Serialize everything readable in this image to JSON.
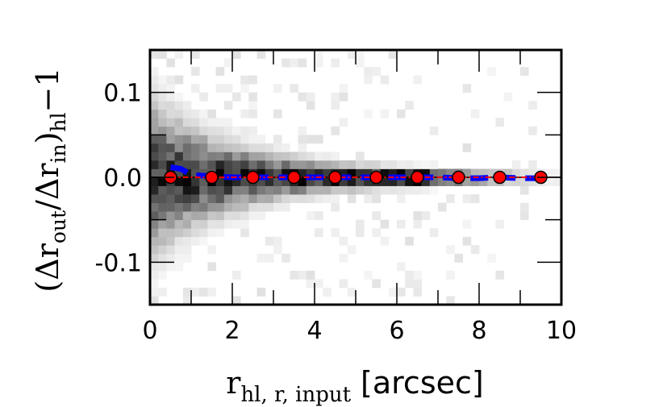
{
  "chart_data": {
    "type": "scatter",
    "xlabel": {
      "main": "r",
      "sub": "hl, r, input",
      "unit": "[arcsec]"
    },
    "ylabel": {
      "open": "(Δr",
      "sub1": "out",
      "mid": "/Δr",
      "sub2": "in",
      "close": ")",
      "sub3": "hl",
      "tail": "−1"
    },
    "xlim": [
      0,
      10
    ],
    "ylim": [
      -0.15,
      0.15
    ],
    "xticks": [
      0,
      2,
      4,
      6,
      8,
      10
    ],
    "xtick_labels": [
      "0",
      "2",
      "4",
      "6",
      "8",
      "10"
    ],
    "yticks": [
      -0.1,
      0.0,
      0.1
    ],
    "ytick_labels": [
      "-0.1",
      "0.0",
      "0.1"
    ],
    "grid": false,
    "reference_line": {
      "y": 0.0,
      "color": "#000000"
    },
    "series": [
      {
        "style": "red markers with dash-dot line",
        "color": "#ff0000",
        "x": [
          0.5,
          1.5,
          2.5,
          3.5,
          4.5,
          5.5,
          6.5,
          7.5,
          8.5,
          9.5
        ],
        "y": [
          0.0,
          0.0,
          0.0,
          0.0,
          0.0,
          0.0,
          0.0,
          0.0,
          0.0,
          0.0
        ]
      },
      {
        "style": "blue dashed line",
        "color": "#0000ff",
        "x": [
          0.5,
          0.75,
          1.0,
          1.5,
          2.0,
          2.5,
          3.0,
          3.5,
          4.0,
          4.5,
          5.0,
          5.5,
          6.0,
          6.5,
          7.0,
          7.5,
          8.0,
          8.5,
          9.0,
          9.5
        ],
        "y": [
          0.012,
          0.01,
          0.003,
          0.001,
          0.0,
          0.0,
          0.0,
          0.0,
          0.0,
          0.0,
          0.0,
          0.0,
          0.0,
          0.0,
          0.0,
          -0.001,
          -0.001,
          0.0,
          -0.001,
          -0.001
        ]
      }
    ],
    "density_background": {
      "type": "heatmap",
      "colormap": "gray_r",
      "x_bins": [
        0,
        10,
        50
      ],
      "y_bins": [
        -0.15,
        0.15,
        30
      ]
    }
  }
}
